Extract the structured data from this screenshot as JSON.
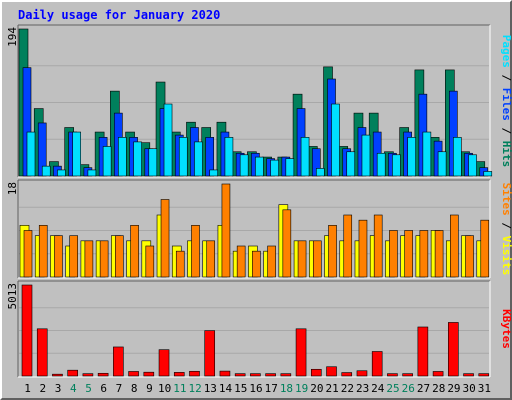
{
  "chart_data": {
    "type": "bar",
    "title": "Daily usage for January 2020",
    "colors": {
      "title": "#0000ff",
      "hits": "#00805c",
      "files": "#0040ff",
      "pages": "#00e0ff",
      "visits": "#ffff00",
      "sites": "#ff8000",
      "kbytes": "#ff0000",
      "weekday_label": "#000000",
      "weekend_label": "#00805c",
      "panel": "#c0c0c0"
    },
    "categories": [
      "1",
      "2",
      "3",
      "4",
      "5",
      "6",
      "7",
      "8",
      "9",
      "10",
      "11",
      "12",
      "13",
      "14",
      "15",
      "16",
      "17",
      "18",
      "19",
      "20",
      "21",
      "22",
      "23",
      "24",
      "25",
      "26",
      "27",
      "28",
      "29",
      "30",
      "31"
    ],
    "weekend_days": [
      "4",
      "5",
      "11",
      "12",
      "18",
      "19",
      "25",
      "26"
    ],
    "panels": [
      {
        "ymax_label": "194",
        "ylim": [
          0,
          194
        ],
        "label_parts": [
          {
            "text": "Pages",
            "color": "#00e0ff"
          },
          {
            "text": " / ",
            "color": "#000000"
          },
          {
            "text": "Files",
            "color": "#0040ff"
          },
          {
            "text": " / ",
            "color": "#000000"
          },
          {
            "text": "Hits",
            "color": "#00805c"
          }
        ],
        "series": [
          {
            "name": "Hits",
            "values": [
              194,
              89,
              19,
              64,
              15,
              58,
              112,
              58,
              44,
              124,
              58,
              71,
              64,
              71,
              32,
              32,
              25,
              25,
              108,
              39,
              144,
              39,
              83,
              83,
              32,
              64,
              140,
              51,
              140,
              32,
              19
            ]
          },
          {
            "name": "Files",
            "values": [
              143,
              70,
              13,
              58,
              11,
              51,
              83,
              51,
              36,
              89,
              54,
              64,
              51,
              58,
              30,
              30,
              23,
              25,
              89,
              36,
              128,
              36,
              64,
              58,
              30,
              58,
              108,
              46,
              112,
              30,
              11
            ]
          },
          {
            "name": "Pages",
            "values": [
              58,
              13,
              8,
              58,
              8,
              39,
              51,
              45,
              36,
              95,
              51,
              45,
              8,
              51,
              28,
              25,
              21,
              23,
              51,
              10,
              95,
              32,
              54,
              30,
              28,
              51,
              58,
              32,
              51,
              28,
              6
            ]
          }
        ]
      },
      {
        "ymax_label": "18",
        "ylim": [
          0,
          18
        ],
        "label_parts": [
          {
            "text": "Sites",
            "color": "#ff8000"
          },
          {
            "text": " / ",
            "color": "#000000"
          },
          {
            "text": "Visits",
            "color": "#ffff00"
          }
        ],
        "series": [
          {
            "name": "Visits",
            "values": [
              10,
              8,
              8,
              6,
              7,
              7,
              8,
              7,
              7,
              12,
              6,
              7,
              7,
              10,
              5,
              6,
              5,
              14,
              7,
              7,
              8,
              7,
              7,
              8,
              7,
              8,
              8,
              9,
              7,
              8,
              7
            ]
          },
          {
            "name": "Sites",
            "values": [
              9,
              10,
              8,
              8,
              7,
              7,
              8,
              10,
              6,
              15,
              5,
              10,
              7,
              18,
              6,
              5,
              6,
              13,
              7,
              7,
              10,
              12,
              11,
              12,
              9,
              9,
              9,
              9,
              12,
              8,
              11
            ]
          }
        ]
      },
      {
        "ymax_label": "5013",
        "ylim": [
          0,
          5013
        ],
        "label_parts": [
          {
            "text": "KBytes",
            "color": "#ff0000"
          }
        ],
        "series": [
          {
            "name": "KBytes",
            "values": [
              5013,
              2600,
              100,
              320,
              130,
              150,
              1600,
              250,
              210,
              1450,
              200,
              260,
              2500,
              270,
              130,
              130,
              130,
              130,
              2600,
              370,
              510,
              190,
              290,
              1350,
              130,
              130,
              2700,
              250,
              2950,
              130,
              130
            ]
          }
        ]
      }
    ]
  }
}
